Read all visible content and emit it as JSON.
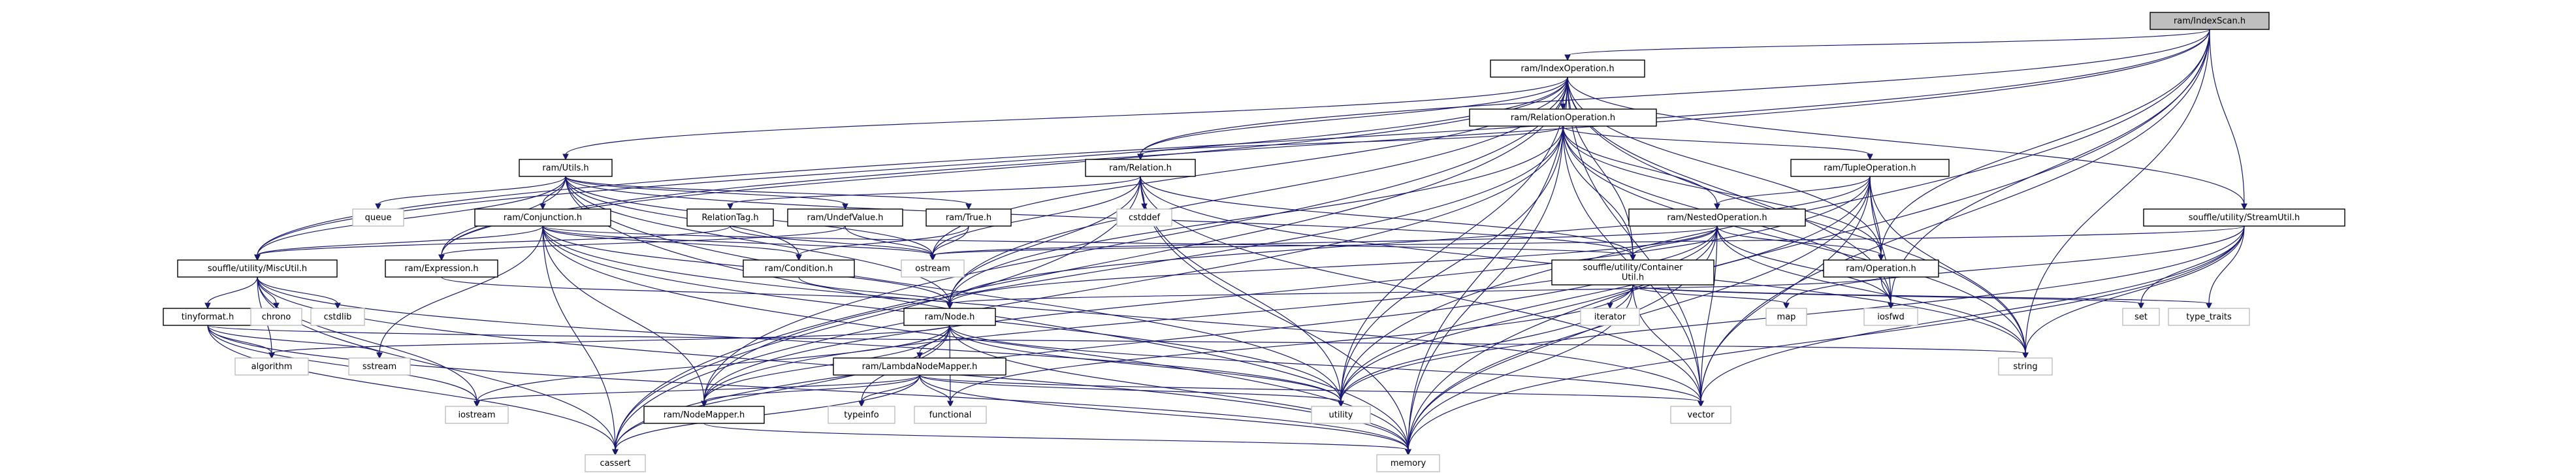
{
  "diagram": {
    "root": "ram/IndexScan.h",
    "nodes": [
      {
        "id": "IndexScan",
        "label": "ram/IndexScan.h",
        "kind": "root"
      },
      {
        "id": "IndexOperation",
        "label": "ram/IndexOperation.h",
        "kind": "header"
      },
      {
        "id": "RelationOperation",
        "label": "ram/RelationOperation.h",
        "kind": "header"
      },
      {
        "id": "Utils",
        "label": "ram/Utils.h",
        "kind": "header"
      },
      {
        "id": "Relation",
        "label": "ram/Relation.h",
        "kind": "header"
      },
      {
        "id": "TupleOperation",
        "label": "ram/TupleOperation.h",
        "kind": "header"
      },
      {
        "id": "StreamUtil",
        "label": "souffle/utility/StreamUtil.h",
        "kind": "header"
      },
      {
        "id": "Conjunction",
        "label": "ram/Conjunction.h",
        "kind": "header"
      },
      {
        "id": "NestedOperation",
        "label": "ram/NestedOperation.h",
        "kind": "header"
      },
      {
        "id": "RelationTag",
        "label": "RelationTag.h",
        "kind": "header"
      },
      {
        "id": "UndefValue",
        "label": "ram/UndefValue.h",
        "kind": "header"
      },
      {
        "id": "True",
        "label": "ram/True.h",
        "kind": "header"
      },
      {
        "id": "MiscUtil",
        "label": "souffle/utility/MiscUtil.h",
        "kind": "header"
      },
      {
        "id": "Expression",
        "label": "ram/Expression.h",
        "kind": "header"
      },
      {
        "id": "Condition",
        "label": "ram/Condition.h",
        "kind": "header"
      },
      {
        "id": "ContainerUtil",
        "label": "souffle/utility/Container\nUtil.h",
        "kind": "header"
      },
      {
        "id": "Operation",
        "label": "ram/Operation.h",
        "kind": "header"
      },
      {
        "id": "tinyformat",
        "label": "tinyformat.h",
        "kind": "header"
      },
      {
        "id": "Node",
        "label": "ram/Node.h",
        "kind": "header"
      },
      {
        "id": "LambdaNodeMapper",
        "label": "ram/LambdaNodeMapper.h",
        "kind": "header"
      },
      {
        "id": "NodeMapper",
        "label": "ram/NodeMapper.h",
        "kind": "header"
      },
      {
        "id": "queue",
        "label": "queue",
        "kind": "system"
      },
      {
        "id": "cstddef",
        "label": "cstddef",
        "kind": "system"
      },
      {
        "id": "ostream",
        "label": "ostream",
        "kind": "system"
      },
      {
        "id": "chrono",
        "label": "chrono",
        "kind": "system"
      },
      {
        "id": "cstdlib",
        "label": "cstdlib",
        "kind": "system"
      },
      {
        "id": "iterator",
        "label": "iterator",
        "kind": "system"
      },
      {
        "id": "map",
        "label": "map",
        "kind": "system"
      },
      {
        "id": "iosfwd",
        "label": "iosfwd",
        "kind": "system"
      },
      {
        "id": "set",
        "label": "set",
        "kind": "system"
      },
      {
        "id": "type_traits",
        "label": "type_traits",
        "kind": "system"
      },
      {
        "id": "algorithm",
        "label": "algorithm",
        "kind": "system"
      },
      {
        "id": "sstream",
        "label": "sstream",
        "kind": "system"
      },
      {
        "id": "string",
        "label": "string",
        "kind": "system"
      },
      {
        "id": "iostream",
        "label": "iostream",
        "kind": "system"
      },
      {
        "id": "typeinfo",
        "label": "typeinfo",
        "kind": "system"
      },
      {
        "id": "functional",
        "label": "functional",
        "kind": "system"
      },
      {
        "id": "utility",
        "label": "utility",
        "kind": "system"
      },
      {
        "id": "vector",
        "label": "vector",
        "kind": "system"
      },
      {
        "id": "cassert",
        "label": "cassert",
        "kind": "system"
      },
      {
        "id": "memory",
        "label": "memory",
        "kind": "system"
      }
    ],
    "edges": [
      [
        "IndexScan",
        "IndexOperation"
      ],
      [
        "IndexScan",
        "Relation"
      ],
      [
        "IndexScan",
        "Operation"
      ],
      [
        "IndexScan",
        "StreamUtil"
      ],
      [
        "IndexScan",
        "MiscUtil"
      ],
      [
        "IndexScan",
        "Expression"
      ],
      [
        "IndexScan",
        "iosfwd"
      ],
      [
        "IndexScan",
        "string"
      ],
      [
        "IndexScan",
        "utility"
      ],
      [
        "IndexScan",
        "vector"
      ],
      [
        "IndexScan",
        "memory"
      ],
      [
        "IndexOperation",
        "RelationOperation"
      ],
      [
        "IndexOperation",
        "Utils"
      ],
      [
        "IndexOperation",
        "Relation"
      ],
      [
        "IndexOperation",
        "ContainerUtil"
      ],
      [
        "IndexOperation",
        "MiscUtil"
      ],
      [
        "IndexOperation",
        "StreamUtil"
      ],
      [
        "IndexOperation",
        "Expression"
      ],
      [
        "IndexOperation",
        "Operation"
      ],
      [
        "IndexOperation",
        "Node"
      ],
      [
        "IndexOperation",
        "NodeMapper"
      ],
      [
        "IndexOperation",
        "ostream"
      ],
      [
        "IndexOperation",
        "iosfwd"
      ],
      [
        "IndexOperation",
        "string"
      ],
      [
        "IndexOperation",
        "utility"
      ],
      [
        "IndexOperation",
        "vector"
      ],
      [
        "IndexOperation",
        "cassert"
      ],
      [
        "IndexOperation",
        "memory"
      ],
      [
        "RelationOperation",
        "Relation"
      ],
      [
        "RelationOperation",
        "TupleOperation"
      ],
      [
        "RelationOperation",
        "NestedOperation"
      ],
      [
        "RelationOperation",
        "ContainerUtil"
      ],
      [
        "RelationOperation",
        "Operation"
      ],
      [
        "RelationOperation",
        "Node"
      ],
      [
        "RelationOperation",
        "NodeMapper"
      ],
      [
        "RelationOperation",
        "cassert"
      ],
      [
        "RelationOperation",
        "iosfwd"
      ],
      [
        "RelationOperation",
        "memory"
      ],
      [
        "RelationOperation",
        "string"
      ],
      [
        "RelationOperation",
        "utility"
      ],
      [
        "RelationOperation",
        "vector"
      ],
      [
        "Utils",
        "queue"
      ],
      [
        "Utils",
        "Conjunction"
      ],
      [
        "Utils",
        "UndefValue"
      ],
      [
        "Utils",
        "True"
      ],
      [
        "Utils",
        "Condition"
      ],
      [
        "Utils",
        "Expression"
      ],
      [
        "Utils",
        "MiscUtil"
      ],
      [
        "Utils",
        "ContainerUtil"
      ],
      [
        "Utils",
        "Node"
      ],
      [
        "Utils",
        "memory"
      ],
      [
        "Utils",
        "utility"
      ],
      [
        "Utils",
        "ostream"
      ],
      [
        "Relation",
        "RelationTag"
      ],
      [
        "Relation",
        "Node"
      ],
      [
        "Relation",
        "ContainerUtil"
      ],
      [
        "Relation",
        "cstddef"
      ],
      [
        "Relation",
        "ostream"
      ],
      [
        "Relation",
        "string"
      ],
      [
        "Relation",
        "utility"
      ],
      [
        "Relation",
        "vector"
      ],
      [
        "Relation",
        "cassert"
      ],
      [
        "Relation",
        "memory"
      ],
      [
        "TupleOperation",
        "NestedOperation"
      ],
      [
        "TupleOperation",
        "Operation"
      ],
      [
        "TupleOperation",
        "Node"
      ],
      [
        "TupleOperation",
        "NodeMapper"
      ],
      [
        "TupleOperation",
        "iosfwd"
      ],
      [
        "TupleOperation",
        "memory"
      ],
      [
        "TupleOperation",
        "string"
      ],
      [
        "TupleOperation",
        "utility"
      ],
      [
        "TupleOperation",
        "vector"
      ],
      [
        "StreamUtil",
        "ostream"
      ],
      [
        "StreamUtil",
        "map"
      ],
      [
        "StreamUtil",
        "set"
      ],
      [
        "StreamUtil",
        "type_traits"
      ],
      [
        "StreamUtil",
        "string"
      ],
      [
        "StreamUtil",
        "utility"
      ],
      [
        "StreamUtil",
        "vector"
      ],
      [
        "StreamUtil",
        "memory"
      ],
      [
        "Conjunction",
        "Condition"
      ],
      [
        "Conjunction",
        "Node"
      ],
      [
        "Conjunction",
        "NodeMapper"
      ],
      [
        "Conjunction",
        "ContainerUtil"
      ],
      [
        "Conjunction",
        "MiscUtil"
      ],
      [
        "Conjunction",
        "cassert"
      ],
      [
        "Conjunction",
        "memory"
      ],
      [
        "Conjunction",
        "ostream"
      ],
      [
        "Conjunction",
        "sstream"
      ],
      [
        "Conjunction",
        "utility"
      ],
      [
        "Conjunction",
        "vector"
      ],
      [
        "NestedOperation",
        "Operation"
      ],
      [
        "NestedOperation",
        "Node"
      ],
      [
        "NestedOperation",
        "NodeMapper"
      ],
      [
        "NestedOperation",
        "ContainerUtil"
      ],
      [
        "NestedOperation",
        "cassert"
      ],
      [
        "NestedOperation",
        "iosfwd"
      ],
      [
        "NestedOperation",
        "memory"
      ],
      [
        "NestedOperation",
        "string"
      ],
      [
        "NestedOperation",
        "utility"
      ],
      [
        "NestedOperation",
        "vector"
      ],
      [
        "NestedOperation",
        "ostream"
      ],
      [
        "RelationTag",
        "MiscUtil"
      ],
      [
        "RelationTag",
        "ostream"
      ],
      [
        "UndefValue",
        "Expression"
      ],
      [
        "UndefValue",
        "ostream"
      ],
      [
        "True",
        "Condition"
      ],
      [
        "True",
        "ostream"
      ],
      [
        "MiscUtil",
        "tinyformat"
      ],
      [
        "MiscUtil",
        "chrono"
      ],
      [
        "MiscUtil",
        "cstdlib"
      ],
      [
        "MiscUtil",
        "algorithm"
      ],
      [
        "MiscUtil",
        "iostream"
      ],
      [
        "MiscUtil",
        "cassert"
      ],
      [
        "MiscUtil",
        "memory"
      ],
      [
        "MiscUtil",
        "utility"
      ],
      [
        "Expression",
        "Node"
      ],
      [
        "Condition",
        "Node"
      ],
      [
        "ContainerUtil",
        "iterator"
      ],
      [
        "ContainerUtil",
        "map"
      ],
      [
        "ContainerUtil",
        "set"
      ],
      [
        "ContainerUtil",
        "type_traits"
      ],
      [
        "ContainerUtil",
        "functional"
      ],
      [
        "ContainerUtil",
        "memory"
      ],
      [
        "ContainerUtil",
        "utility"
      ],
      [
        "ContainerUtil",
        "vector"
      ],
      [
        "Operation",
        "Node"
      ],
      [
        "Operation",
        "iosfwd"
      ],
      [
        "tinyformat",
        "algorithm"
      ],
      [
        "tinyformat",
        "sstream"
      ],
      [
        "tinyformat",
        "string"
      ],
      [
        "tinyformat",
        "iostream"
      ],
      [
        "tinyformat",
        "cassert"
      ],
      [
        "tinyformat",
        "memory"
      ],
      [
        "Node",
        "LambdaNodeMapper"
      ],
      [
        "Node",
        "NodeMapper"
      ],
      [
        "Node",
        "algorithm"
      ],
      [
        "Node",
        "functional"
      ],
      [
        "Node",
        "iostream"
      ],
      [
        "Node",
        "typeinfo"
      ],
      [
        "Node",
        "utility"
      ],
      [
        "Node",
        "vector"
      ],
      [
        "Node",
        "cassert"
      ],
      [
        "Node",
        "memory"
      ],
      [
        "LambdaNodeMapper",
        "NodeMapper"
      ],
      [
        "LambdaNodeMapper",
        "functional"
      ],
      [
        "LambdaNodeMapper",
        "memory"
      ],
      [
        "LambdaNodeMapper",
        "cassert"
      ],
      [
        "LambdaNodeMapper",
        "iostream"
      ],
      [
        "LambdaNodeMapper",
        "typeinfo"
      ],
      [
        "LambdaNodeMapper",
        "utility"
      ],
      [
        "LambdaNodeMapper",
        "vector"
      ],
      [
        "NodeMapper",
        "memory"
      ]
    ]
  }
}
